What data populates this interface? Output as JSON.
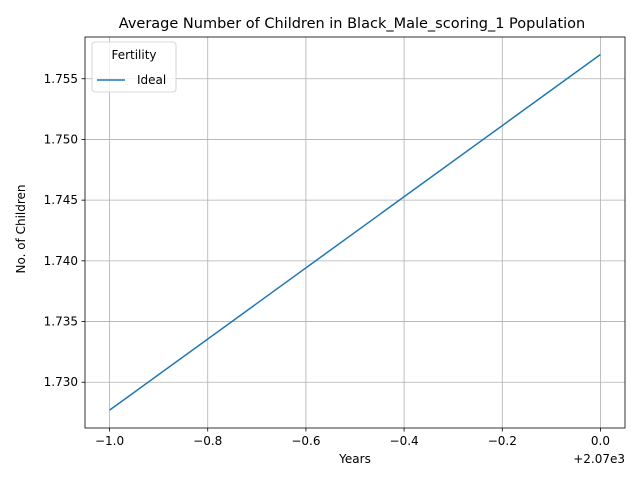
{
  "chart_data": {
    "type": "line",
    "title": "Average Number of Children in Black_Male_scoring_1 Population",
    "xlabel": "Years",
    "ylabel": "No. of Children",
    "x_offset_label": "+2.07e3",
    "x_ticks": [
      -1.0,
      -0.8,
      -0.6,
      -0.4,
      -0.2,
      0.0
    ],
    "x_tick_labels": [
      "−1.0",
      "−0.8",
      "−0.6",
      "−0.4",
      "−0.2",
      "0.0"
    ],
    "y_ticks": [
      1.73,
      1.735,
      1.74,
      1.745,
      1.75,
      1.755
    ],
    "y_tick_labels": [
      "1.730",
      "1.735",
      "1.740",
      "1.745",
      "1.750",
      "1.755"
    ],
    "xlim": [
      -1.05,
      0.05
    ],
    "ylim": [
      1.72623,
      1.75844
    ],
    "grid": true,
    "legend": {
      "title": "Fertility",
      "placement": "upper-left"
    },
    "series": [
      {
        "name": "Ideal",
        "color": "#1f77b4",
        "x": [
          -1.0,
          0.0
        ],
        "y": [
          1.7277,
          1.757
        ]
      }
    ]
  }
}
